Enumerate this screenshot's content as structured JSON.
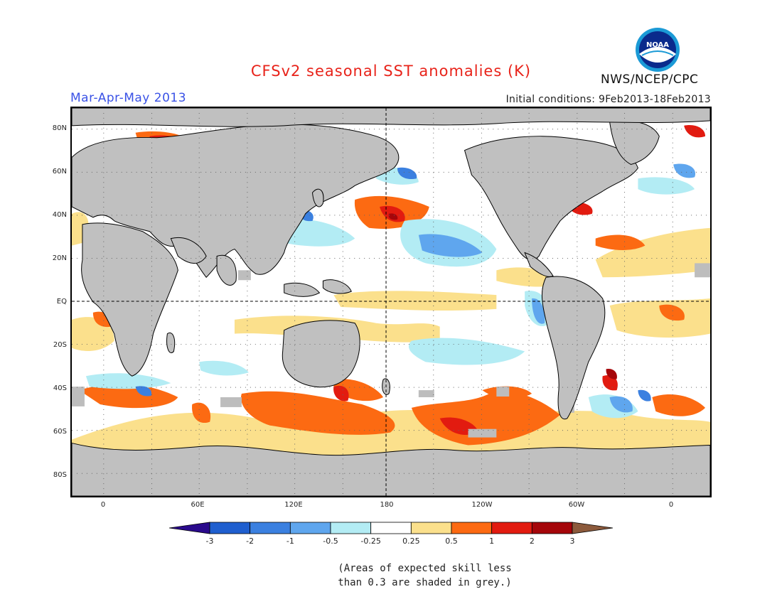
{
  "title": "CFSv2 seasonal SST anomalies (K)",
  "season": "Mar-Apr-May 2013",
  "initial_conditions": "Initial conditions: 9Feb2013-18Feb2013",
  "agency": "NWS/NCEP/CPC",
  "logo_icon": "noaa-logo-icon",
  "map": {
    "projection": "equirectangular",
    "lon_range": [
      -20,
      380
    ],
    "lat_range": [
      -90,
      90
    ],
    "land_color": "#c0c0c0",
    "skill_mask_color": "#bdbdbd",
    "graticule": "dotted 30°",
    "lat_labels": [
      "80N",
      "60N",
      "40N",
      "20N",
      "EQ",
      "20S",
      "40S",
      "60S",
      "80S"
    ],
    "lon_labels": [
      "0",
      "60E",
      "120E",
      "180",
      "120W",
      "60W",
      "0"
    ]
  },
  "colorbar": {
    "labels": [
      "-3",
      "-2",
      "-1",
      "-0.5",
      "-0.25",
      "0.25",
      "0.5",
      "1",
      "2",
      "3"
    ],
    "colors": [
      "#2a0a8c",
      "#1f5fcf",
      "#3b80e0",
      "#5fa6ee",
      "#b3ecf4",
      "#ffffff",
      "#fbe08c",
      "#fc6a12",
      "#e21b10",
      "#a5060a",
      "#8c5a3c"
    ]
  },
  "note_line1": "(Areas of expected skill less",
  "note_line2": "than 0.3 are shaded in grey.)"
}
